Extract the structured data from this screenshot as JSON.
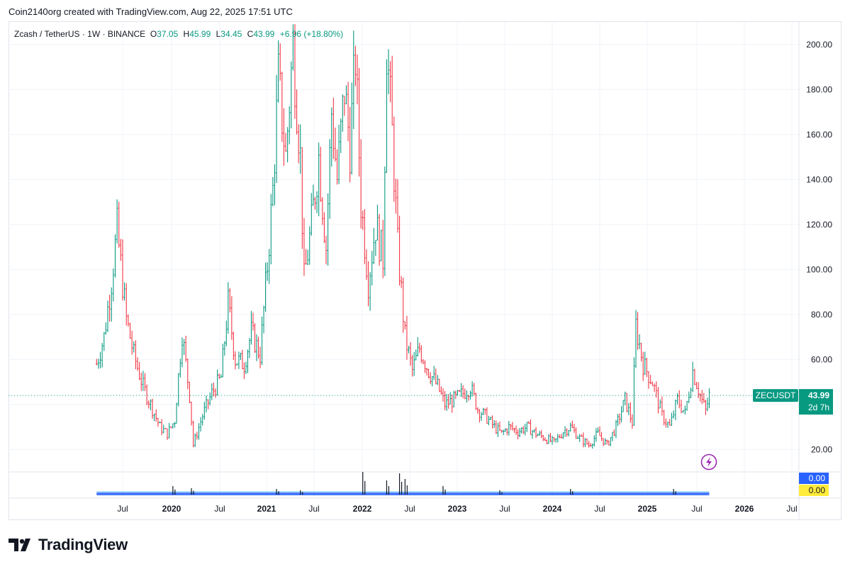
{
  "header": {
    "attribution": "Coin2140org created with TradingView.com, Aug 22, 2025 17:51 UTC"
  },
  "legend": {
    "symbol": "Zcash / TetherUS · 1W · BINANCE",
    "o_label": "O",
    "o": "37.05",
    "h_label": "H",
    "h": "45.99",
    "l_label": "L",
    "l": "34.45",
    "c_label": "C",
    "c": "43.99",
    "change": "+6.96 (+18.80%)"
  },
  "price_tag": {
    "ticker": "ZECUSDT",
    "price": "43.99",
    "countdown": "2d 7h"
  },
  "volume_tags": {
    "a": "0.00",
    "b": "0.00"
  },
  "footer": {
    "brand": "TradingView"
  },
  "colors": {
    "up": "#089981",
    "down": "#f23645",
    "tag": "#089981",
    "vol_a": "#2962ff",
    "vol_b": "#ffeb3b",
    "grid": "#f0f3fa"
  },
  "chart_data": {
    "type": "candlestick",
    "interval": "1W",
    "exchange": "BINANCE",
    "pair": "ZEC/USDT",
    "ylim": [
      10,
      210
    ],
    "yticks": [
      "20.00",
      "40.00",
      "60.00",
      "80.00",
      "100.00",
      "120.00",
      "140.00",
      "160.00",
      "180.00",
      "200.00"
    ],
    "ytick_values": [
      20,
      40,
      60,
      80,
      100,
      120,
      140,
      160,
      180,
      200
    ],
    "xticks": [
      "Jul",
      "2020",
      "Jul",
      "2021",
      "Jul",
      "2022",
      "Jul",
      "2023",
      "Jul",
      "2024",
      "Jul",
      "2025",
      "Jul",
      "2026",
      "Jul"
    ],
    "xtick_dates": [
      "2019-07-01",
      "2020-01-01",
      "2020-07-01",
      "2021-01-01",
      "2021-07-01",
      "2022-01-01",
      "2022-07-01",
      "2023-01-01",
      "2023-07-01",
      "2024-01-01",
      "2024-07-01",
      "2025-01-01",
      "2025-07-01",
      "2026-01-01",
      "2026-07-01"
    ],
    "last_price": 43.99,
    "price_series": {
      "dates": [
        "2019-03-25",
        "2019-04-22",
        "2019-05-20",
        "2019-06-10",
        "2019-06-24",
        "2019-07-15",
        "2019-08-12",
        "2019-09-16",
        "2019-10-21",
        "2019-11-18",
        "2019-12-16",
        "2020-01-13",
        "2020-02-10",
        "2020-03-09",
        "2020-03-23",
        "2020-04-27",
        "2020-06-01",
        "2020-07-06",
        "2020-08-03",
        "2020-08-31",
        "2020-10-05",
        "2020-11-02",
        "2020-12-07",
        "2021-01-04",
        "2021-01-25",
        "2021-02-15",
        "2021-03-15",
        "2021-04-12",
        "2021-05-10",
        "2021-05-24",
        "2021-06-21",
        "2021-07-19",
        "2021-08-16",
        "2021-09-06",
        "2021-09-27",
        "2021-10-25",
        "2021-11-15",
        "2021-12-06",
        "2021-12-27",
        "2022-01-24",
        "2022-02-21",
        "2022-03-21",
        "2022-04-04",
        "2022-04-25",
        "2022-05-16",
        "2022-06-13",
        "2022-07-11",
        "2022-08-08",
        "2022-09-12",
        "2022-10-17",
        "2022-11-14",
        "2022-12-19",
        "2023-01-23",
        "2023-02-20",
        "2023-03-20",
        "2023-04-17",
        "2023-05-22",
        "2023-06-19",
        "2023-07-17",
        "2023-08-21",
        "2023-09-25",
        "2023-10-30",
        "2023-12-04",
        "2024-01-08",
        "2024-02-12",
        "2024-03-11",
        "2024-04-15",
        "2024-05-20",
        "2024-06-24",
        "2024-07-29",
        "2024-09-02",
        "2024-10-07",
        "2024-11-04",
        "2024-11-18",
        "2024-12-16",
        "2025-01-20",
        "2025-02-24",
        "2025-03-24",
        "2025-04-21",
        "2025-05-19",
        "2025-06-16",
        "2025-07-14",
        "2025-08-04",
        "2025-08-18"
      ],
      "close": [
        58,
        70,
        95,
        118,
        102,
        78,
        62,
        48,
        38,
        30,
        27,
        33,
        72,
        44,
        22,
        35,
        45,
        52,
        85,
        60,
        58,
        72,
        62,
        102,
        135,
        185,
        150,
        200,
        150,
        95,
        120,
        150,
        110,
        170,
        140,
        180,
        155,
        195,
        130,
        95,
        120,
        105,
        200,
        160,
        110,
        70,
        55,
        65,
        55,
        48,
        40,
        42,
        45,
        48,
        38,
        35,
        30,
        27,
        30,
        28,
        30,
        27,
        25,
        23,
        28,
        30,
        25,
        22,
        27,
        22,
        30,
        42,
        32,
        75,
        58,
        50,
        35,
        30,
        42,
        36,
        55,
        44,
        37,
        44
      ]
    },
    "volume_series": {
      "dates": [
        "2020-01-06",
        "2020-03-16",
        "2021-02-08",
        "2021-05-10",
        "2022-01-03",
        "2022-04-04",
        "2022-05-23",
        "2022-06-13",
        "2022-11-07",
        "2023-06-12",
        "2024-03-11",
        "2025-04-07"
      ],
      "values": [
        12,
        9,
        8,
        6,
        32,
        20,
        30,
        22,
        12,
        6,
        8,
        8
      ]
    },
    "volume_indicator_values": [
      "0.00",
      "0.00"
    ]
  }
}
